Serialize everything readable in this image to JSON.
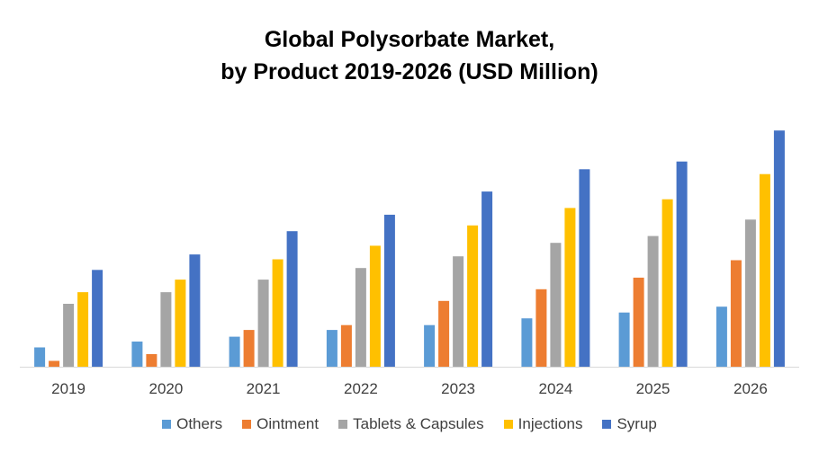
{
  "chart_data": {
    "type": "bar",
    "title_lines": [
      "Global Polysorbate Market,",
      "by Product 2019-2026 (USD Million)"
    ],
    "categories": [
      "2019",
      "2020",
      "2021",
      "2022",
      "2023",
      "2024",
      "2025",
      "2026"
    ],
    "series": [
      {
        "name": "Others",
        "color": "#5b9bd5",
        "values": [
          20,
          26,
          31,
          38,
          43,
          50,
          56,
          62
        ]
      },
      {
        "name": "Ointment",
        "color": "#ed7d31",
        "values": [
          6,
          13,
          38,
          43,
          68,
          80,
          92,
          110
        ]
      },
      {
        "name": "Tablets & Capsules",
        "color": "#a5a5a5",
        "values": [
          65,
          77,
          90,
          102,
          114,
          128,
          135,
          152
        ]
      },
      {
        "name": "Injections",
        "color": "#ffc000",
        "values": [
          77,
          90,
          111,
          125,
          146,
          164,
          173,
          199
        ]
      },
      {
        "name": "Syrup",
        "color": "#4472c4",
        "values": [
          100,
          116,
          140,
          157,
          181,
          204,
          212,
          244
        ]
      }
    ],
    "ylim": [
      0,
      260
    ],
    "grid": false,
    "legend_position": "bottom",
    "axis_color": "#d9d9d9"
  }
}
